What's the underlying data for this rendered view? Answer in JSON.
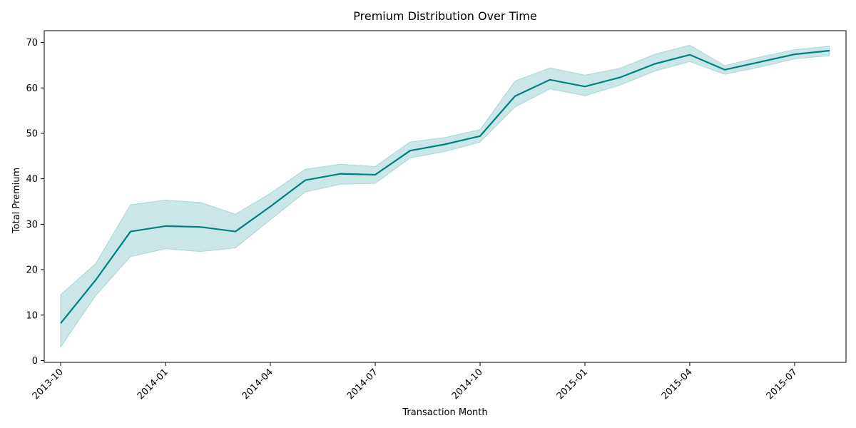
{
  "chart_data": {
    "type": "line",
    "title": "Premium Distribution Over Time",
    "xlabel": "Transaction Month",
    "ylabel": "Total Premium",
    "x": [
      "2013-10",
      "2013-11",
      "2013-12",
      "2014-01",
      "2014-02",
      "2014-03",
      "2014-04",
      "2014-05",
      "2014-06",
      "2014-07",
      "2014-08",
      "2014-09",
      "2014-10",
      "2014-11",
      "2014-12",
      "2015-01",
      "2015-02",
      "2015-03",
      "2015-04",
      "2015-05",
      "2015-06",
      "2015-07",
      "2015-08"
    ],
    "series": [
      {
        "values": [
          8.2,
          17.7,
          28.4,
          29.6,
          29.4,
          28.4,
          33.9,
          39.7,
          41.1,
          40.9,
          46.2,
          47.6,
          49.4,
          58.2,
          61.8,
          60.3,
          62.3,
          65.3,
          67.3,
          64.0,
          65.7,
          67.4,
          68.2
        ],
        "lower": [
          3.0,
          14.3,
          22.9,
          24.6,
          24.0,
          24.8,
          31.0,
          37.1,
          38.8,
          39.0,
          44.6,
          46.0,
          48.1,
          55.8,
          59.8,
          58.3,
          60.6,
          63.7,
          65.8,
          63.0,
          64.6,
          66.4,
          67.1
        ],
        "upper": [
          14.5,
          21.3,
          34.3,
          35.3,
          34.8,
          32.2,
          36.8,
          42.1,
          43.2,
          42.7,
          48.1,
          49.1,
          50.8,
          61.5,
          64.4,
          62.8,
          64.3,
          67.4,
          69.4,
          64.9,
          66.8,
          68.4,
          69.2
        ],
        "color": "#008080",
        "band_color": "#a9d6d6"
      }
    ],
    "x_ticks": [
      "2013-10",
      "2014-01",
      "2014-04",
      "2014-07",
      "2014-10",
      "2015-01",
      "2015-04",
      "2015-07"
    ],
    "y_ticks": [
      0,
      10,
      20,
      30,
      40,
      50,
      60,
      70
    ],
    "ylim": [
      -0.4,
      72.6
    ],
    "xlim": [
      "2013-09",
      "2015-09"
    ],
    "grid": false,
    "legend": false
  }
}
